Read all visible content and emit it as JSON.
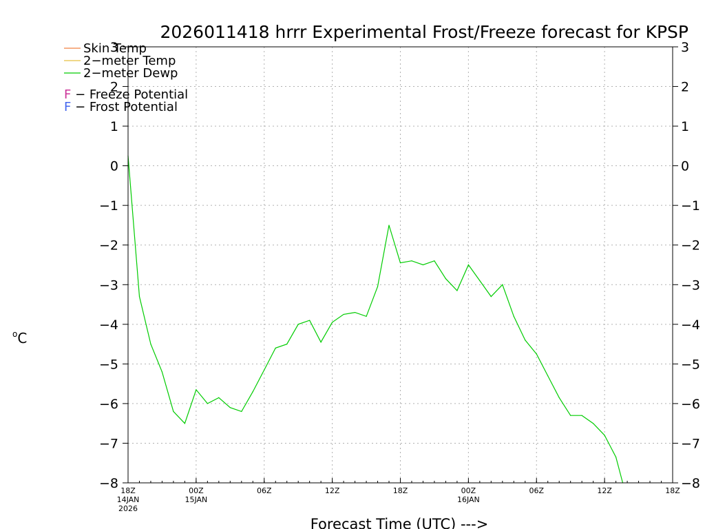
{
  "chart_data": {
    "type": "line",
    "title": "2026011418 hrrr Experimental Frost/Freeze forecast for KPSP",
    "ylabel_sup": "o",
    "ylabel": "C",
    "xlabel": "Forecast Time (UTC) --->",
    "ylim": [
      -8,
      3
    ],
    "yticks": [
      3,
      2,
      1,
      0,
      -1,
      -2,
      -3,
      -4,
      -5,
      -6,
      -7,
      -8
    ],
    "ytick_labels": [
      "3",
      "2",
      "1",
      "0",
      "−1",
      "−2",
      "−3",
      "−4",
      "−5",
      "−6",
      "−7",
      "−8"
    ],
    "xlim": [
      0,
      48
    ],
    "xticks": [
      {
        "hour": 0,
        "lines": [
          "18Z",
          "14JAN",
          "2026"
        ]
      },
      {
        "hour": 6,
        "lines": [
          "00Z",
          "15JAN"
        ]
      },
      {
        "hour": 12,
        "lines": [
          "06Z"
        ]
      },
      {
        "hour": 18,
        "lines": [
          "12Z"
        ]
      },
      {
        "hour": 24,
        "lines": [
          "18Z"
        ]
      },
      {
        "hour": 30,
        "lines": [
          "00Z",
          "16JAN"
        ]
      },
      {
        "hour": 36,
        "lines": [
          "06Z"
        ]
      },
      {
        "hour": 42,
        "lines": [
          "12Z"
        ]
      },
      {
        "hour": 48,
        "lines": [
          "18Z"
        ]
      }
    ],
    "grid": true,
    "legend": [
      {
        "name": "Skin Temp",
        "color": "#f08040"
      },
      {
        "name": "2−meter Temp",
        "color": "#e8c040"
      },
      {
        "name": "2−meter Dewp",
        "color": "#00cc00"
      }
    ],
    "potential_legend": [
      {
        "letter": "F",
        "text": " − Freeze Potential",
        "color": "#cc3399"
      },
      {
        "letter": "F",
        "text": " − Frost Potential",
        "color": "#4466ee"
      }
    ],
    "series": [
      {
        "name": "2−meter Dewp",
        "color": "#00cc00",
        "x": [
          0,
          1,
          2,
          3,
          4,
          5,
          6,
          7,
          8,
          9,
          10,
          11,
          12,
          13,
          14,
          15,
          16,
          17,
          18,
          19,
          20,
          21,
          22,
          23,
          24,
          25,
          26,
          27,
          28,
          29,
          30,
          31,
          32,
          33,
          34,
          35,
          36,
          37,
          38,
          39,
          40,
          41,
          42,
          43,
          43.6
        ],
        "values": [
          0.25,
          -3.3,
          -4.5,
          -5.2,
          -6.2,
          -6.5,
          -5.65,
          -6.0,
          -5.85,
          -6.1,
          -6.2,
          -5.7,
          -5.15,
          -4.6,
          -4.5,
          -4.0,
          -3.9,
          -4.45,
          -3.95,
          -3.75,
          -3.7,
          -3.8,
          -3.05,
          -1.5,
          -2.45,
          -2.4,
          -2.5,
          -2.4,
          -2.85,
          -3.15,
          -2.5,
          -2.9,
          -3.3,
          -3.0,
          -3.8,
          -4.4,
          -4.75,
          -5.3,
          -5.85,
          -6.3,
          -6.3,
          -6.5,
          -6.8,
          -7.35,
          -8.0
        ]
      }
    ]
  }
}
